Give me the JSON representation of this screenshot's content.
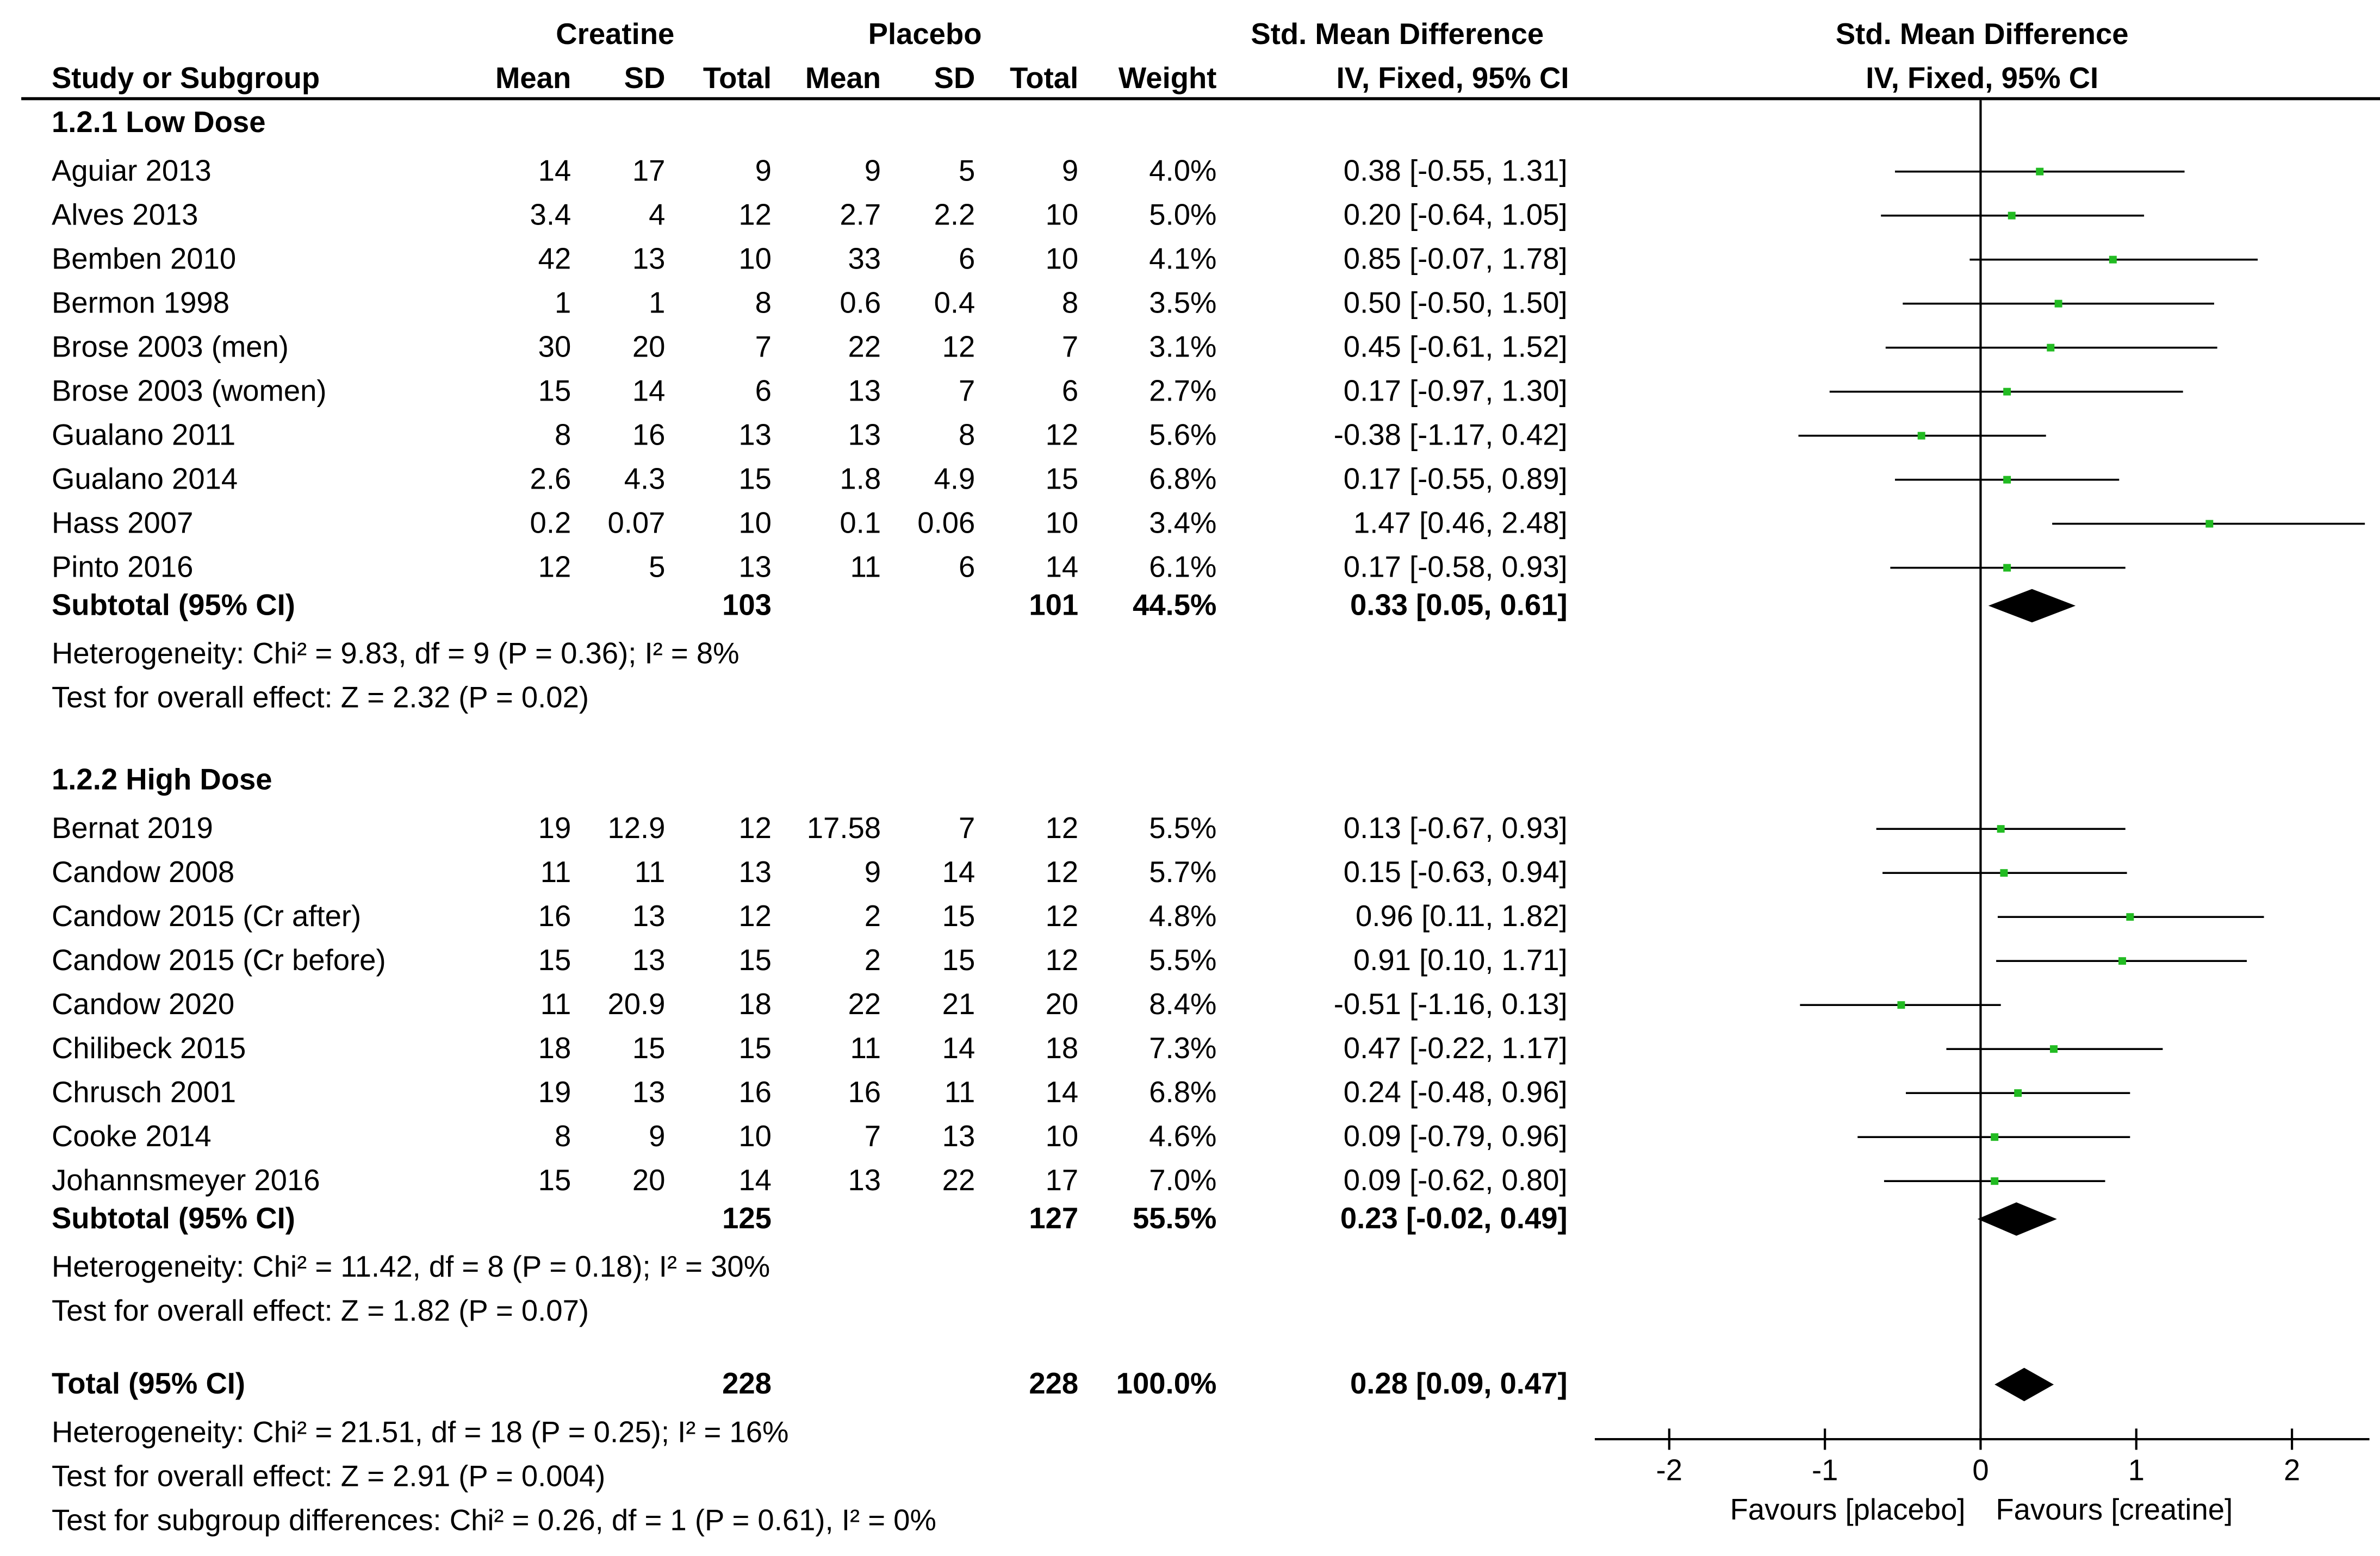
{
  "header": {
    "group1": "Creatine",
    "group2": "Placebo",
    "smd_title": "Std. Mean Difference",
    "smd_method": "IV, Fixed, 95% CI",
    "plot_title": "Std. Mean Difference",
    "plot_method": "IV, Fixed, 95% CI",
    "columns": {
      "study": "Study or Subgroup",
      "mean1": "Mean",
      "sd1": "SD",
      "total1": "Total",
      "mean2": "Mean",
      "sd2": "SD",
      "total2": "Total",
      "weight": "Weight"
    }
  },
  "subgroups": [
    {
      "title": "1.2.1 Low Dose",
      "studies": [
        {
          "name": "Aguiar 2013",
          "m1": "14",
          "sd1": "17",
          "n1": "9",
          "m2": "9",
          "sd2": "5",
          "n2": "9",
          "w": "4.0%",
          "ci": "0.38 [-0.55, 1.31]"
        },
        {
          "name": "Alves 2013",
          "m1": "3.4",
          "sd1": "4",
          "n1": "12",
          "m2": "2.7",
          "sd2": "2.2",
          "n2": "10",
          "w": "5.0%",
          "ci": "0.20 [-0.64, 1.05]"
        },
        {
          "name": "Bemben 2010",
          "m1": "42",
          "sd1": "13",
          "n1": "10",
          "m2": "33",
          "sd2": "6",
          "n2": "10",
          "w": "4.1%",
          "ci": "0.85 [-0.07, 1.78]"
        },
        {
          "name": "Bermon 1998",
          "m1": "1",
          "sd1": "1",
          "n1": "8",
          "m2": "0.6",
          "sd2": "0.4",
          "n2": "8",
          "w": "3.5%",
          "ci": "0.50 [-0.50, 1.50]"
        },
        {
          "name": "Brose 2003 (men)",
          "m1": "30",
          "sd1": "20",
          "n1": "7",
          "m2": "22",
          "sd2": "12",
          "n2": "7",
          "w": "3.1%",
          "ci": "0.45 [-0.61, 1.52]"
        },
        {
          "name": "Brose 2003 (women)",
          "m1": "15",
          "sd1": "14",
          "n1": "6",
          "m2": "13",
          "sd2": "7",
          "n2": "6",
          "w": "2.7%",
          "ci": "0.17 [-0.97, 1.30]"
        },
        {
          "name": "Gualano 2011",
          "m1": "8",
          "sd1": "16",
          "n1": "13",
          "m2": "13",
          "sd2": "8",
          "n2": "12",
          "w": "5.6%",
          "ci": "-0.38 [-1.17, 0.42]"
        },
        {
          "name": "Gualano 2014",
          "m1": "2.6",
          "sd1": "4.3",
          "n1": "15",
          "m2": "1.8",
          "sd2": "4.9",
          "n2": "15",
          "w": "6.8%",
          "ci": "0.17 [-0.55, 0.89]"
        },
        {
          "name": "Hass 2007",
          "m1": "0.2",
          "sd1": "0.07",
          "n1": "10",
          "m2": "0.1",
          "sd2": "0.06",
          "n2": "10",
          "w": "3.4%",
          "ci": "1.47 [0.46, 2.48]"
        },
        {
          "name": "Pinto 2016",
          "m1": "12",
          "sd1": "5",
          "n1": "13",
          "m2": "11",
          "sd2": "6",
          "n2": "14",
          "w": "6.1%",
          "ci": "0.17 [-0.58, 0.93]"
        }
      ],
      "subtotal": {
        "label": "Subtotal (95% CI)",
        "n1": "103",
        "n2": "101",
        "w": "44.5%",
        "ci": "0.33 [0.05, 0.61]"
      },
      "heterogeneity": "Heterogeneity: Chi² = 9.83, df = 9 (P = 0.36); I² = 8%",
      "overall": "Test for overall effect: Z = 2.32 (P = 0.02)"
    },
    {
      "title": "1.2.2 High Dose",
      "studies": [
        {
          "name": "Bernat 2019",
          "m1": "19",
          "sd1": "12.9",
          "n1": "12",
          "m2": "17.58",
          "sd2": "7",
          "n2": "12",
          "w": "5.5%",
          "ci": "0.13 [-0.67, 0.93]"
        },
        {
          "name": "Candow 2008",
          "m1": "11",
          "sd1": "11",
          "n1": "13",
          "m2": "9",
          "sd2": "14",
          "n2": "12",
          "w": "5.7%",
          "ci": "0.15 [-0.63, 0.94]"
        },
        {
          "name": "Candow 2015 (Cr after)",
          "m1": "16",
          "sd1": "13",
          "n1": "12",
          "m2": "2",
          "sd2": "15",
          "n2": "12",
          "w": "4.8%",
          "ci": "0.96 [0.11, 1.82]"
        },
        {
          "name": "Candow 2015 (Cr before)",
          "m1": "15",
          "sd1": "13",
          "n1": "15",
          "m2": "2",
          "sd2": "15",
          "n2": "12",
          "w": "5.5%",
          "ci": "0.91 [0.10, 1.71]"
        },
        {
          "name": "Candow 2020",
          "m1": "11",
          "sd1": "20.9",
          "n1": "18",
          "m2": "22",
          "sd2": "21",
          "n2": "20",
          "w": "8.4%",
          "ci": "-0.51 [-1.16, 0.13]"
        },
        {
          "name": "Chilibeck 2015",
          "m1": "18",
          "sd1": "15",
          "n1": "15",
          "m2": "11",
          "sd2": "14",
          "n2": "18",
          "w": "7.3%",
          "ci": "0.47 [-0.22, 1.17]"
        },
        {
          "name": "Chrusch 2001",
          "m1": "19",
          "sd1": "13",
          "n1": "16",
          "m2": "16",
          "sd2": "11",
          "n2": "14",
          "w": "6.8%",
          "ci": "0.24 [-0.48, 0.96]"
        },
        {
          "name": "Cooke 2014",
          "m1": "8",
          "sd1": "9",
          "n1": "10",
          "m2": "7",
          "sd2": "13",
          "n2": "10",
          "w": "4.6%",
          "ci": "0.09 [-0.79, 0.96]"
        },
        {
          "name": "Johannsmeyer 2016",
          "m1": "15",
          "sd1": "20",
          "n1": "14",
          "m2": "13",
          "sd2": "22",
          "n2": "17",
          "w": "7.0%",
          "ci": "0.09 [-0.62, 0.80]"
        }
      ],
      "subtotal": {
        "label": "Subtotal (95% CI)",
        "n1": "125",
        "n2": "127",
        "w": "55.5%",
        "ci": "0.23 [-0.02, 0.49]"
      },
      "heterogeneity": "Heterogeneity: Chi² = 11.42, df = 8 (P = 0.18); I² = 30%",
      "overall": "Test for overall effect: Z = 1.82 (P = 0.07)"
    }
  ],
  "total": {
    "label": "Total (95% CI)",
    "n1": "228",
    "n2": "228",
    "w": "100.0%",
    "ci": "0.28 [0.09, 0.47]",
    "heterogeneity": "Heterogeneity: Chi² = 21.51, df = 18 (P = 0.25); I² = 16%",
    "overall": "Test for overall effect: Z = 2.91 (P = 0.004)",
    "subgroup_diff": "Test for subgroup differences: Chi² = 0.26, df = 1 (P = 0.61), I² = 0%"
  },
  "axis": {
    "ticks": [
      "-2",
      "-1",
      "0",
      "1",
      "2"
    ],
    "favours_left": "Favours [placebo]",
    "favours_right": "Favours [creatine]"
  },
  "colors": {
    "point": "#22bb22",
    "line": "#000000"
  },
  "chart_data": {
    "type": "scatter",
    "xlim": [
      -2,
      2
    ],
    "xticks": [
      -2,
      -1,
      0,
      1,
      2
    ],
    "studies": [
      {
        "name": "Aguiar 2013",
        "est": 0.38,
        "lo": -0.55,
        "hi": 1.31
      },
      {
        "name": "Alves 2013",
        "est": 0.2,
        "lo": -0.64,
        "hi": 1.05
      },
      {
        "name": "Bemben 2010",
        "est": 0.85,
        "lo": -0.07,
        "hi": 1.78
      },
      {
        "name": "Bermon 1998",
        "est": 0.5,
        "lo": -0.5,
        "hi": 1.5
      },
      {
        "name": "Brose 2003 (men)",
        "est": 0.45,
        "lo": -0.61,
        "hi": 1.52
      },
      {
        "name": "Brose 2003 (women)",
        "est": 0.17,
        "lo": -0.97,
        "hi": 1.3
      },
      {
        "name": "Gualano 2011",
        "est": -0.38,
        "lo": -1.17,
        "hi": 0.42
      },
      {
        "name": "Gualano 2014",
        "est": 0.17,
        "lo": -0.55,
        "hi": 0.89
      },
      {
        "name": "Hass 2007",
        "est": 1.47,
        "lo": 0.46,
        "hi": 2.48
      },
      {
        "name": "Pinto 2016",
        "est": 0.17,
        "lo": -0.58,
        "hi": 0.93
      },
      {
        "name": "Subtotal (95% CI)",
        "est": 0.33,
        "lo": 0.05,
        "hi": 0.61,
        "diamond": true
      },
      {
        "name": "Bernat 2019",
        "est": 0.13,
        "lo": -0.67,
        "hi": 0.93
      },
      {
        "name": "Candow 2008",
        "est": 0.15,
        "lo": -0.63,
        "hi": 0.94
      },
      {
        "name": "Candow 2015 (Cr after)",
        "est": 0.96,
        "lo": 0.11,
        "hi": 1.82
      },
      {
        "name": "Candow 2015 (Cr before)",
        "est": 0.91,
        "lo": 0.1,
        "hi": 1.71
      },
      {
        "name": "Candow 2020",
        "est": -0.51,
        "lo": -1.16,
        "hi": 0.13
      },
      {
        "name": "Chilibeck 2015",
        "est": 0.47,
        "lo": -0.22,
        "hi": 1.17
      },
      {
        "name": "Chrusch 2001",
        "est": 0.24,
        "lo": -0.48,
        "hi": 0.96
      },
      {
        "name": "Cooke 2014",
        "est": 0.09,
        "lo": -0.79,
        "hi": 0.96
      },
      {
        "name": "Johannsmeyer 2016",
        "est": 0.09,
        "lo": -0.62,
        "hi": 0.8
      },
      {
        "name": "Subtotal (95% CI)",
        "est": 0.23,
        "lo": -0.02,
        "hi": 0.49,
        "diamond": true
      },
      {
        "name": "Total (95% CI)",
        "est": 0.28,
        "lo": 0.09,
        "hi": 0.47,
        "diamond": true
      }
    ]
  }
}
